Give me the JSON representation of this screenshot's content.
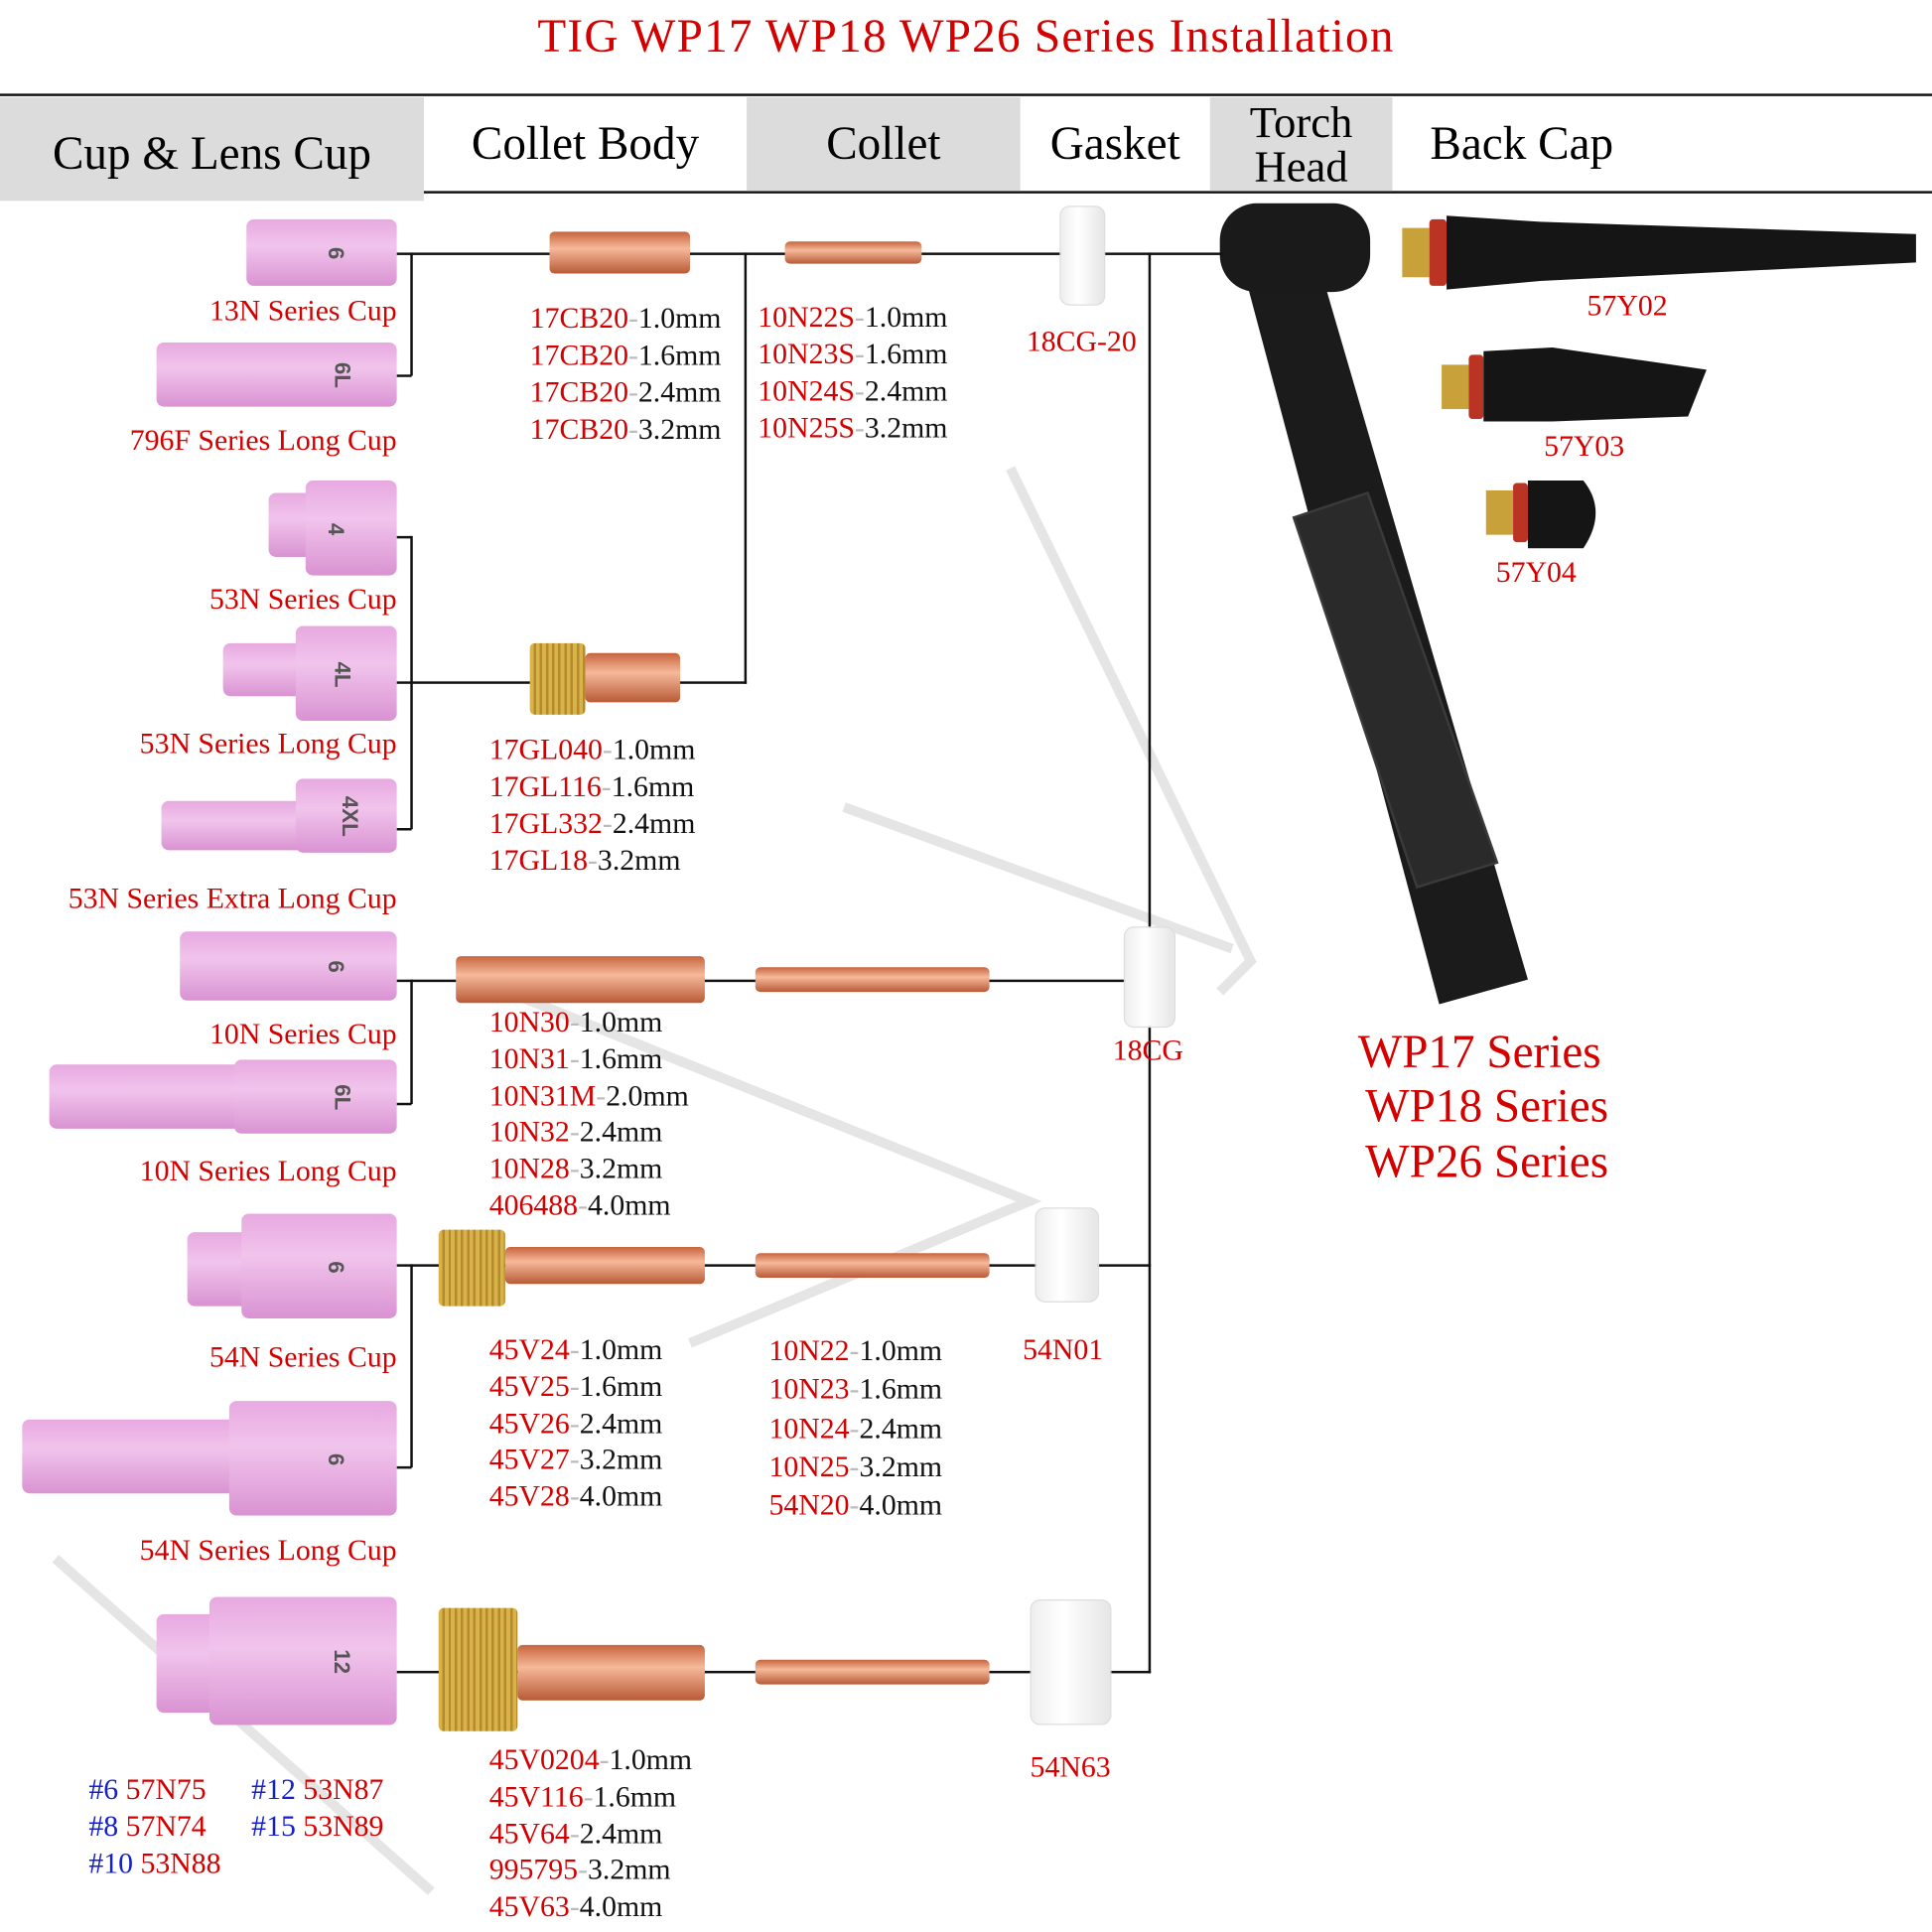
{
  "title": "TIG WP17 WP18 WP26 Series Installation",
  "header": {
    "cup": "Cup & Lens Cup",
    "collet_body": "Collet Body",
    "collet": "Collet",
    "gasket": "Gasket",
    "torch_head_1": "Torch",
    "torch_head_2": "Head",
    "back_cap": "Back Cap"
  },
  "cups": [
    {
      "label": "13N Series Cup",
      "number": "6"
    },
    {
      "label": "796F Series Long Cup",
      "number": "6L"
    },
    {
      "label": "53N Series Cup",
      "number": "4"
    },
    {
      "label": "53N Series Long Cup",
      "number": "4L"
    },
    {
      "label": "53N Series Extra Long Cup",
      "number": "4XL"
    },
    {
      "label": "10N Series Cup",
      "number": "6"
    },
    {
      "label": "10N Series Long Cup",
      "number": "6L"
    },
    {
      "label": "54N Series Cup",
      "number": "6"
    },
    {
      "label": "54N Series Long Cup",
      "number": "6"
    },
    {
      "label": "",
      "number": "12"
    }
  ],
  "large_cup_sizes": [
    {
      "size": "#6",
      "code": "57N75"
    },
    {
      "size": "#8",
      "code": "57N74"
    },
    {
      "size": "#10",
      "code": "53N88"
    },
    {
      "size": "#12",
      "code": "53N87"
    },
    {
      "size": "#15",
      "code": "53N89"
    }
  ],
  "collet_body_groups": [
    [
      {
        "code": "17CB20",
        "size": "1.0mm"
      },
      {
        "code": "17CB20",
        "size": "1.6mm"
      },
      {
        "code": "17CB20",
        "size": "2.4mm"
      },
      {
        "code": "17CB20",
        "size": "3.2mm"
      }
    ],
    [
      {
        "code": "17GL040",
        "size": "1.0mm"
      },
      {
        "code": "17GL116",
        "size": "1.6mm"
      },
      {
        "code": "17GL332",
        "size": "2.4mm"
      },
      {
        "code": "17GL18",
        "size": "3.2mm"
      }
    ],
    [
      {
        "code": "10N30",
        "size": "1.0mm"
      },
      {
        "code": "10N31",
        "size": "1.6mm"
      },
      {
        "code": "10N31M",
        "size": "2.0mm"
      },
      {
        "code": "10N32",
        "size": "2.4mm"
      },
      {
        "code": "10N28",
        "size": "3.2mm"
      },
      {
        "code": "406488",
        "size": "4.0mm"
      }
    ],
    [
      {
        "code": "45V24",
        "size": "1.0mm"
      },
      {
        "code": "45V25",
        "size": "1.6mm"
      },
      {
        "code": "45V26",
        "size": "2.4mm"
      },
      {
        "code": "45V27",
        "size": "3.2mm"
      },
      {
        "code": "45V28",
        "size": "4.0mm"
      }
    ],
    [
      {
        "code": "45V0204",
        "size": "1.0mm"
      },
      {
        "code": "45V116",
        "size": "1.6mm"
      },
      {
        "code": "45V64",
        "size": "2.4mm"
      },
      {
        "code": "995795",
        "size": "3.2mm"
      },
      {
        "code": "45V63",
        "size": "4.0mm"
      }
    ]
  ],
  "collet_groups": [
    [
      {
        "code": "10N22S",
        "size": "1.0mm"
      },
      {
        "code": "10N23S",
        "size": "1.6mm"
      },
      {
        "code": "10N24S",
        "size": "2.4mm"
      },
      {
        "code": "10N25S",
        "size": "3.2mm"
      }
    ],
    [
      {
        "code": "10N22",
        "size": "1.0mm"
      },
      {
        "code": "10N23",
        "size": "1.6mm"
      },
      {
        "code": "10N24",
        "size": "2.4mm"
      },
      {
        "code": "10N25",
        "size": "3.2mm"
      },
      {
        "code": "54N20",
        "size": "4.0mm"
      }
    ]
  ],
  "gaskets": [
    "18CG-20",
    "18CG",
    "54N01",
    "54N63"
  ],
  "back_caps": [
    "57Y02",
    "57Y03",
    "57Y04"
  ],
  "series": [
    "WP17 Series",
    "WP18 Series",
    "WP26 Series"
  ],
  "colors": {
    "code_red": "#d40000",
    "size_blue": "#1520c8",
    "header_gray": "#dcdcdc",
    "cup_pink": "#f1c4ec"
  }
}
